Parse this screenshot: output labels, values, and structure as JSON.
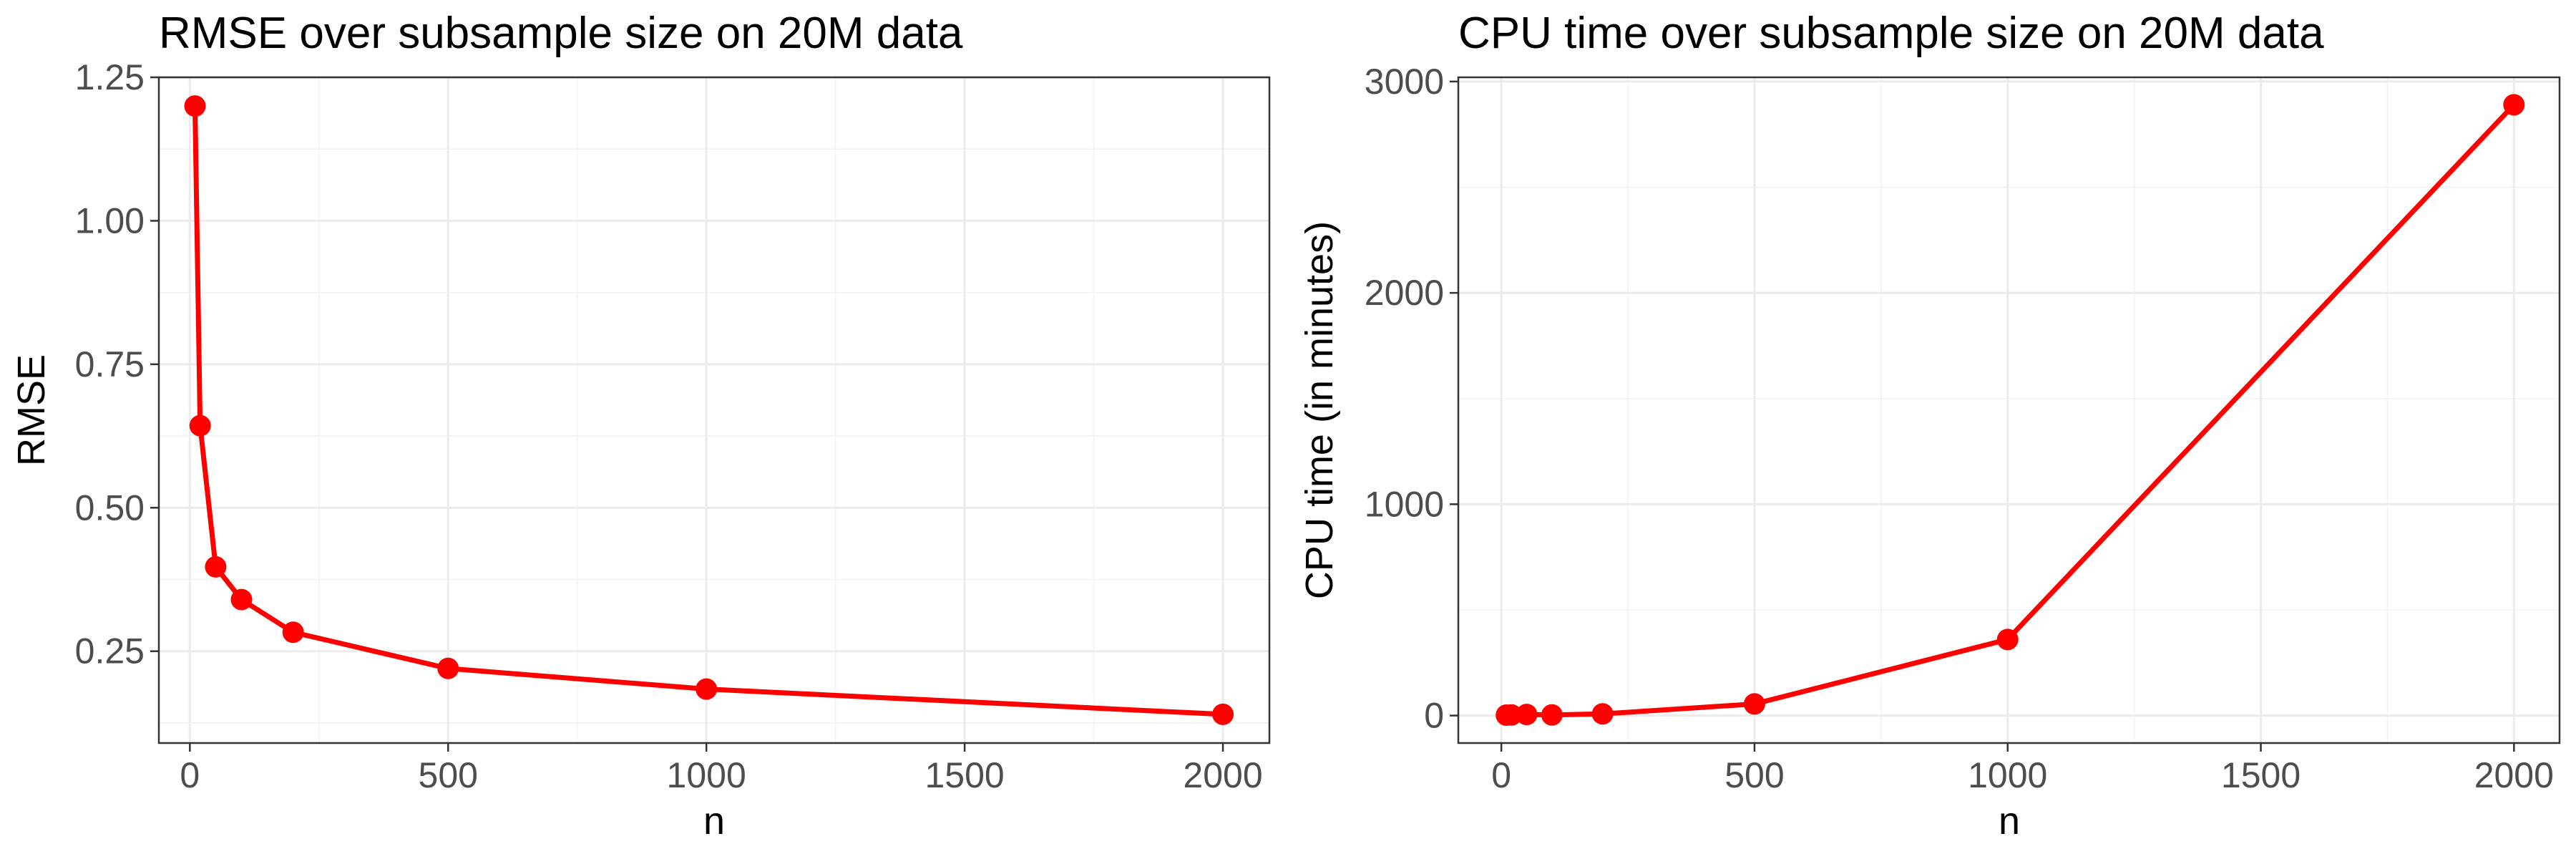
{
  "chart_data": [
    {
      "type": "line",
      "title": "RMSE over subsample size on 20M data",
      "xlabel": "n",
      "ylabel": "RMSE",
      "xlim": [
        -60,
        2090
      ],
      "ylim": [
        0.09,
        1.25
      ],
      "x_ticks": [
        0,
        500,
        1000,
        1500,
        2000
      ],
      "y_ticks": [
        0.25,
        0.5,
        0.75,
        1.0,
        1.25
      ],
      "x_tick_labels": [
        "0",
        "500",
        "1000",
        "1500",
        "2000"
      ],
      "y_tick_labels": [
        "0.25",
        "0.50",
        "0.75",
        "1.00",
        "1.25"
      ],
      "grid": true,
      "series": [
        {
          "color": "#ff0000",
          "x": [
            10,
            20,
            50,
            100,
            200,
            500,
            1000,
            2000
          ],
          "values": [
            1.2,
            0.643,
            0.397,
            0.34,
            0.283,
            0.22,
            0.184,
            0.14
          ]
        }
      ]
    },
    {
      "type": "line",
      "title": "CPU time over subsample size on 20M data",
      "xlabel": "n",
      "ylabel": "CPU time (in minutes)",
      "xlim": [
        -85,
        2090
      ],
      "ylim": [
        -130,
        3020
      ],
      "x_ticks": [
        0,
        500,
        1000,
        1500,
        2000
      ],
      "y_ticks": [
        0,
        1000,
        2000,
        3000
      ],
      "x_tick_labels": [
        "0",
        "500",
        "1000",
        "1500",
        "2000"
      ],
      "y_tick_labels": [
        "0",
        "1000",
        "2000",
        "3000"
      ],
      "grid": true,
      "series": [
        {
          "color": "#ff0000",
          "x": [
            10,
            20,
            50,
            100,
            200,
            500,
            1000,
            2000
          ],
          "values": [
            2,
            3,
            5,
            3,
            8,
            55,
            360,
            2890
          ]
        }
      ]
    }
  ]
}
